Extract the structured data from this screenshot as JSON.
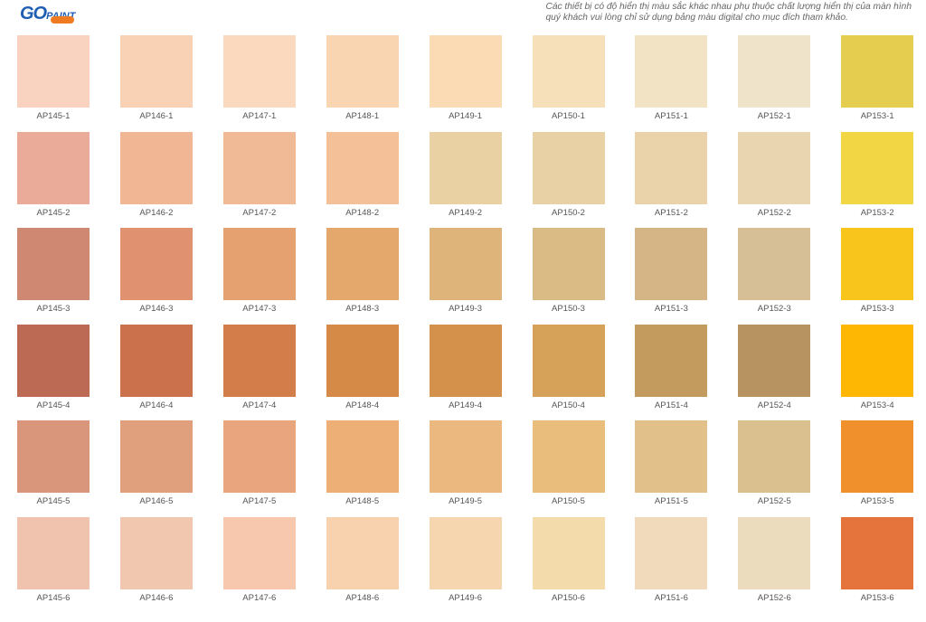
{
  "header": {
    "logo": {
      "mark": "GO",
      "word": "PAINT"
    },
    "notice": [
      "Các thiết bị có độ hiển thị màu sắc khác nhau phụ thuộc chất lượng hiển thị của màn hình",
      "quý khách vui lòng chỉ sử dụng bảng màu digital cho mục đích tham khảo."
    ]
  },
  "swatches": [
    [
      {
        "label": "AP145-1",
        "color": "#f9d3bf"
      },
      {
        "label": "AP146-1",
        "color": "#f9d2b5"
      },
      {
        "label": "AP147-1",
        "color": "#fbd9bf"
      },
      {
        "label": "AP148-1",
        "color": "#fad5b2"
      },
      {
        "label": "AP149-1",
        "color": "#fadbb3"
      },
      {
        "label": "AP150-1",
        "color": "#f5e0ba"
      },
      {
        "label": "AP151-1",
        "color": "#f2e3c4"
      },
      {
        "label": "AP152-1",
        "color": "#efe3c9"
      },
      {
        "label": "AP153-1",
        "color": "#e5cd50"
      }
    ],
    [
      {
        "label": "AP145-2",
        "color": "#eaab98"
      },
      {
        "label": "AP146-2",
        "color": "#f1b794"
      },
      {
        "label": "AP147-2",
        "color": "#f0ba97"
      },
      {
        "label": "AP148-2",
        "color": "#f3c097"
      },
      {
        "label": "AP149-2",
        "color": "#ead1a3"
      },
      {
        "label": "AP150-2",
        "color": "#e8d2a5"
      },
      {
        "label": "AP151-2",
        "color": "#ead3aa"
      },
      {
        "label": "AP152-2",
        "color": "#e9d6b1"
      },
      {
        "label": "AP153-2",
        "color": "#f2d643"
      }
    ],
    [
      {
        "label": "AP145-3",
        "color": "#cf8872"
      },
      {
        "label": "AP146-3",
        "color": "#e09170"
      },
      {
        "label": "AP147-3",
        "color": "#e6a170"
      },
      {
        "label": "AP148-3",
        "color": "#e4a76c"
      },
      {
        "label": "AP149-3",
        "color": "#dfb47b"
      },
      {
        "label": "AP150-3",
        "color": "#dbbb85"
      },
      {
        "label": "AP151-3",
        "color": "#d5b585"
      },
      {
        "label": "AP152-3",
        "color": "#d6bf96"
      },
      {
        "label": "AP153-3",
        "color": "#f8c51c"
      }
    ],
    [
      {
        "label": "AP145-4",
        "color": "#bc6a54"
      },
      {
        "label": "AP146-4",
        "color": "#cb714b"
      },
      {
        "label": "AP147-4",
        "color": "#d37d4a"
      },
      {
        "label": "AP148-4",
        "color": "#d58a48"
      },
      {
        "label": "AP149-4",
        "color": "#d3914b"
      },
      {
        "label": "AP150-4",
        "color": "#d6a158"
      },
      {
        "label": "AP151-4",
        "color": "#c49b5e"
      },
      {
        "label": "AP152-4",
        "color": "#b69360"
      },
      {
        "label": "AP153-4",
        "color": "#feb702"
      }
    ],
    [
      {
        "label": "AP145-5",
        "color": "#d9967a"
      },
      {
        "label": "AP146-5",
        "color": "#e0a07d"
      },
      {
        "label": "AP147-5",
        "color": "#e9a67e"
      },
      {
        "label": "AP148-5",
        "color": "#edaf75"
      },
      {
        "label": "AP149-5",
        "color": "#ebb980"
      },
      {
        "label": "AP150-5",
        "color": "#e9bd7c"
      },
      {
        "label": "AP151-5",
        "color": "#e2c08a"
      },
      {
        "label": "AP152-5",
        "color": "#d9c08e"
      },
      {
        "label": "AP153-5",
        "color": "#ef902d"
      }
    ],
    [
      {
        "label": "AP145-6",
        "color": "#efc3ad"
      },
      {
        "label": "AP146-6",
        "color": "#f2c7b0"
      },
      {
        "label": "AP147-6",
        "color": "#f7c8ad"
      },
      {
        "label": "AP148-6",
        "color": "#f8d1ae"
      },
      {
        "label": "AP149-6",
        "color": "#f6d6ae"
      },
      {
        "label": "AP150-6",
        "color": "#f4dbab"
      },
      {
        "label": "AP151-6",
        "color": "#f0dabb"
      },
      {
        "label": "AP152-6",
        "color": "#eadcbc"
      },
      {
        "label": "AP153-6",
        "color": "#e4743b"
      }
    ]
  ]
}
